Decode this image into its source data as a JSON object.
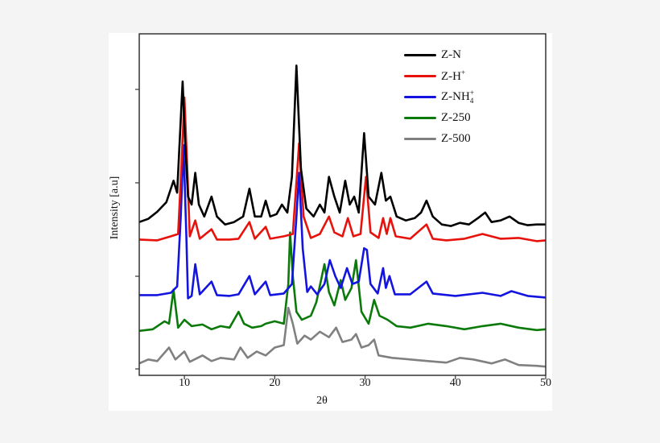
{
  "chart_data": {
    "type": "line",
    "title": "",
    "xlabel": "2θ",
    "ylabel": "Intensity [a.u]",
    "xlim": [
      5,
      50
    ],
    "ylim": [
      0,
      430
    ],
    "grid": false,
    "legend_position": "upper right (inside)",
    "x_ticks": [
      10,
      20,
      30,
      40,
      50
    ],
    "y_ticks_unlabeled": 4,
    "note": "Stacked (offset) XRD patterns; intensity in arbitrary units (y measured upward from bottom axis).",
    "series": [
      {
        "name": "Z-N",
        "color": "#000000",
        "points": [
          [
            5,
            193
          ],
          [
            6,
            197
          ],
          [
            7,
            206
          ],
          [
            8,
            218
          ],
          [
            8.8,
            245
          ],
          [
            9.2,
            230
          ],
          [
            9.5,
            300
          ],
          [
            9.8,
            370
          ],
          [
            10.1,
            290
          ],
          [
            10.4,
            225
          ],
          [
            10.8,
            215
          ],
          [
            11.2,
            255
          ],
          [
            11.6,
            215
          ],
          [
            12.2,
            200
          ],
          [
            13,
            225
          ],
          [
            13.6,
            200
          ],
          [
            14.5,
            190
          ],
          [
            15.5,
            193
          ],
          [
            16.5,
            200
          ],
          [
            17.2,
            235
          ],
          [
            17.8,
            200
          ],
          [
            18.5,
            200
          ],
          [
            19,
            220
          ],
          [
            19.5,
            200
          ],
          [
            20.2,
            203
          ],
          [
            20.8,
            215
          ],
          [
            21.4,
            205
          ],
          [
            21.9,
            250
          ],
          [
            22.4,
            390
          ],
          [
            22.9,
            260
          ],
          [
            23.5,
            210
          ],
          [
            24.3,
            200
          ],
          [
            25,
            215
          ],
          [
            25.5,
            205
          ],
          [
            26,
            250
          ],
          [
            26.6,
            225
          ],
          [
            27.2,
            205
          ],
          [
            27.8,
            245
          ],
          [
            28.3,
            215
          ],
          [
            28.8,
            225
          ],
          [
            29.3,
            205
          ],
          [
            29.9,
            305
          ],
          [
            30.4,
            225
          ],
          [
            31.1,
            215
          ],
          [
            31.8,
            255
          ],
          [
            32.3,
            220
          ],
          [
            32.8,
            225
          ],
          [
            33.5,
            200
          ],
          [
            34.5,
            195
          ],
          [
            35.5,
            198
          ],
          [
            36.2,
            205
          ],
          [
            36.8,
            220
          ],
          [
            37.5,
            200
          ],
          [
            38.5,
            190
          ],
          [
            39.5,
            188
          ],
          [
            40.5,
            192
          ],
          [
            41.5,
            190
          ],
          [
            42.5,
            198
          ],
          [
            43.3,
            205
          ],
          [
            44,
            193
          ],
          [
            45,
            195
          ],
          [
            46,
            200
          ],
          [
            47,
            192
          ],
          [
            48,
            189
          ],
          [
            49,
            190
          ],
          [
            50,
            190
          ]
        ]
      },
      {
        "name": "Z-H⁺",
        "color": "#e8120c",
        "points": [
          [
            5,
            171
          ],
          [
            7,
            170
          ],
          [
            8.5,
            175
          ],
          [
            9.3,
            178
          ],
          [
            9.7,
            270
          ],
          [
            10,
            350
          ],
          [
            10.3,
            265
          ],
          [
            10.6,
            175
          ],
          [
            11.2,
            195
          ],
          [
            11.7,
            172
          ],
          [
            13,
            184
          ],
          [
            13.6,
            171
          ],
          [
            15,
            171
          ],
          [
            16,
            172
          ],
          [
            17.2,
            193
          ],
          [
            17.8,
            172
          ],
          [
            19,
            187
          ],
          [
            19.5,
            172
          ],
          [
            21,
            175
          ],
          [
            22,
            178
          ],
          [
            22.7,
            292
          ],
          [
            23.2,
            200
          ],
          [
            24,
            173
          ],
          [
            25,
            178
          ],
          [
            26,
            200
          ],
          [
            26.6,
            180
          ],
          [
            27.5,
            175
          ],
          [
            28.1,
            198
          ],
          [
            28.7,
            175
          ],
          [
            29.5,
            178
          ],
          [
            30.1,
            250
          ],
          [
            30.6,
            180
          ],
          [
            31.5,
            173
          ],
          [
            32,
            198
          ],
          [
            32.4,
            178
          ],
          [
            32.8,
            198
          ],
          [
            33.4,
            175
          ],
          [
            35,
            172
          ],
          [
            36.8,
            190
          ],
          [
            37.5,
            172
          ],
          [
            39,
            170
          ],
          [
            41,
            172
          ],
          [
            43,
            178
          ],
          [
            45,
            172
          ],
          [
            47,
            173
          ],
          [
            49,
            169
          ],
          [
            50,
            170
          ]
        ]
      },
      {
        "name": "Z-NH₄⁺",
        "color": "#1414e0",
        "points": [
          [
            5,
            101
          ],
          [
            7,
            101
          ],
          [
            8.5,
            104
          ],
          [
            9.2,
            112
          ],
          [
            9.6,
            200
          ],
          [
            9.9,
            290
          ],
          [
            10.2,
            180
          ],
          [
            10.4,
            97
          ],
          [
            10.8,
            100
          ],
          [
            11.2,
            140
          ],
          [
            11.7,
            102
          ],
          [
            13,
            118
          ],
          [
            13.6,
            101
          ],
          [
            15,
            100
          ],
          [
            16,
            102
          ],
          [
            17.2,
            125
          ],
          [
            17.8,
            102
          ],
          [
            19,
            118
          ],
          [
            19.5,
            101
          ],
          [
            21,
            103
          ],
          [
            21.9,
            115
          ],
          [
            22.4,
            200
          ],
          [
            22.7,
            255
          ],
          [
            23.1,
            160
          ],
          [
            23.6,
            105
          ],
          [
            24,
            112
          ],
          [
            24.7,
            102
          ],
          [
            25.5,
            115
          ],
          [
            26.1,
            145
          ],
          [
            26.7,
            125
          ],
          [
            27.3,
            110
          ],
          [
            28,
            135
          ],
          [
            28.6,
            115
          ],
          [
            29.3,
            118
          ],
          [
            29.9,
            160
          ],
          [
            30.2,
            158
          ],
          [
            30.6,
            115
          ],
          [
            31.4,
            103
          ],
          [
            32,
            135
          ],
          [
            32.3,
            110
          ],
          [
            32.7,
            125
          ],
          [
            33.3,
            102
          ],
          [
            35,
            102
          ],
          [
            36.8,
            118
          ],
          [
            37.5,
            103
          ],
          [
            40,
            100
          ],
          [
            43,
            104
          ],
          [
            45,
            100
          ],
          [
            46.2,
            106
          ],
          [
            48,
            100
          ],
          [
            50,
            98
          ]
        ]
      },
      {
        "name": "Z-250",
        "color": "#0b7a0b",
        "points": [
          [
            5,
            56
          ],
          [
            6.5,
            58
          ],
          [
            7.8,
            68
          ],
          [
            8.3,
            65
          ],
          [
            8.8,
            108
          ],
          [
            9.3,
            60
          ],
          [
            10,
            70
          ],
          [
            10.8,
            62
          ],
          [
            12,
            64
          ],
          [
            13,
            58
          ],
          [
            14,
            62
          ],
          [
            15,
            60
          ],
          [
            16,
            80
          ],
          [
            16.6,
            65
          ],
          [
            17.5,
            60
          ],
          [
            18.5,
            62
          ],
          [
            19,
            65
          ],
          [
            20,
            68
          ],
          [
            21,
            65
          ],
          [
            21.5,
            115
          ],
          [
            21.7,
            180
          ],
          [
            22,
            125
          ],
          [
            22.4,
            80
          ],
          [
            23,
            70
          ],
          [
            24,
            75
          ],
          [
            24.6,
            92
          ],
          [
            25.5,
            140
          ],
          [
            26,
            105
          ],
          [
            26.6,
            88
          ],
          [
            27.3,
            120
          ],
          [
            27.8,
            95
          ],
          [
            28.5,
            110
          ],
          [
            29,
            145
          ],
          [
            29.6,
            80
          ],
          [
            30.4,
            65
          ],
          [
            31,
            95
          ],
          [
            31.6,
            75
          ],
          [
            32.5,
            70
          ],
          [
            33.5,
            62
          ],
          [
            35,
            60
          ],
          [
            37,
            65
          ],
          [
            39,
            62
          ],
          [
            41,
            58
          ],
          [
            43,
            62
          ],
          [
            45,
            65
          ],
          [
            47,
            60
          ],
          [
            49,
            57
          ],
          [
            50,
            58
          ]
        ]
      },
      {
        "name": "Z-500",
        "color": "#808080",
        "points": [
          [
            5,
            15
          ],
          [
            6,
            20
          ],
          [
            7,
            18
          ],
          [
            8.3,
            35
          ],
          [
            9,
            20
          ],
          [
            10,
            30
          ],
          [
            10.6,
            17
          ],
          [
            12,
            25
          ],
          [
            13,
            18
          ],
          [
            14,
            22
          ],
          [
            15.5,
            20
          ],
          [
            16.2,
            35
          ],
          [
            17,
            22
          ],
          [
            18,
            30
          ],
          [
            19,
            25
          ],
          [
            20,
            35
          ],
          [
            21,
            38
          ],
          [
            21.5,
            85
          ],
          [
            22,
            65
          ],
          [
            22.5,
            40
          ],
          [
            23.3,
            50
          ],
          [
            24,
            45
          ],
          [
            25,
            55
          ],
          [
            26,
            48
          ],
          [
            26.8,
            60
          ],
          [
            27.5,
            42
          ],
          [
            28.5,
            45
          ],
          [
            29,
            52
          ],
          [
            29.6,
            35
          ],
          [
            30.4,
            38
          ],
          [
            31,
            45
          ],
          [
            31.5,
            25
          ],
          [
            33,
            22
          ],
          [
            35,
            20
          ],
          [
            37,
            18
          ],
          [
            39,
            16
          ],
          [
            40.5,
            22
          ],
          [
            42,
            20
          ],
          [
            44,
            15
          ],
          [
            45.5,
            20
          ],
          [
            47,
            13
          ],
          [
            49,
            12
          ],
          [
            50,
            11
          ]
        ]
      }
    ]
  },
  "axes": {
    "x_tick_labels": [
      "10",
      "20",
      "30",
      "40",
      "50"
    ],
    "xlabel": "2θ",
    "ylabel": "Intensity [a.u]"
  },
  "legend": {
    "items": [
      {
        "base": "Z-H",
        "label": "Z-N",
        "color": "#000000"
      },
      {
        "label": "Z-H",
        "sup": "+",
        "color": "#e8120c"
      },
      {
        "label": "Z-NH",
        "sub": "4",
        "sup": "+",
        "color": "#1414e0"
      },
      {
        "label": "Z-250",
        "color": "#0b7a0b"
      },
      {
        "label": "Z-500",
        "color": "#808080"
      }
    ]
  }
}
